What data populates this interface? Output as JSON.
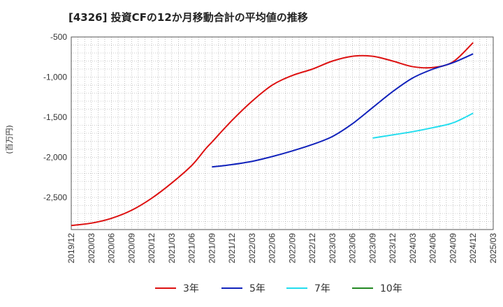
{
  "chart_data": {
    "type": "line",
    "title": "[4326]  投資CFの12か月移動合計の平均値の推移",
    "ylabel": "(百万円)",
    "xlabel": "",
    "ylim": [
      -2900,
      -500
    ],
    "yticks": [
      -500,
      -1000,
      -1500,
      -2000,
      -2500
    ],
    "ytick_labels": [
      "-500",
      "-1,000",
      "-1,500",
      "-2,000",
      "-2,500"
    ],
    "xticks": [
      "2019/12",
      "2020/03",
      "2020/06",
      "2020/09",
      "2020/12",
      "2021/03",
      "2021/06",
      "2021/09",
      "2021/12",
      "2022/03",
      "2022/06",
      "2022/09",
      "2022/12",
      "2023/03",
      "2023/06",
      "2023/09",
      "2023/12",
      "2024/03",
      "2024/06",
      "2024/09",
      "2024/12",
      "2025/03"
    ],
    "grid": true,
    "legend_position": "bottom",
    "series": [
      {
        "name": "3年",
        "color": "#dd1111",
        "points": [
          [
            "2019/12",
            -2850
          ],
          [
            "2020/03",
            -2820
          ],
          [
            "2020/06",
            -2760
          ],
          [
            "2020/09",
            -2660
          ],
          [
            "2020/12",
            -2510
          ],
          [
            "2021/03",
            -2320
          ],
          [
            "2021/06",
            -2100
          ],
          [
            "2021/08",
            -1900
          ],
          [
            "2021/09",
            -1810
          ],
          [
            "2021/12",
            -1540
          ],
          [
            "2022/03",
            -1300
          ],
          [
            "2022/06",
            -1100
          ],
          [
            "2022/09",
            -980
          ],
          [
            "2022/12",
            -900
          ],
          [
            "2023/03",
            -800
          ],
          [
            "2023/06",
            -740
          ],
          [
            "2023/09",
            -740
          ],
          [
            "2023/12",
            -800
          ],
          [
            "2024/03",
            -870
          ],
          [
            "2024/06",
            -880
          ],
          [
            "2024/09",
            -810
          ],
          [
            "2024/12",
            -570
          ]
        ]
      },
      {
        "name": "5年",
        "color": "#1122bb",
        "points": [
          [
            "2021/09",
            -2120
          ],
          [
            "2021/12",
            -2090
          ],
          [
            "2022/03",
            -2050
          ],
          [
            "2022/06",
            -1990
          ],
          [
            "2022/09",
            -1920
          ],
          [
            "2022/12",
            -1840
          ],
          [
            "2023/03",
            -1740
          ],
          [
            "2023/06",
            -1580
          ],
          [
            "2023/09",
            -1380
          ],
          [
            "2023/12",
            -1180
          ],
          [
            "2024/03",
            -1010
          ],
          [
            "2024/06",
            -900
          ],
          [
            "2024/09",
            -820
          ],
          [
            "2024/12",
            -710
          ]
        ]
      },
      {
        "name": "7年",
        "color": "#22ddee",
        "points": [
          [
            "2023/09",
            -1760
          ],
          [
            "2023/12",
            -1720
          ],
          [
            "2024/03",
            -1680
          ],
          [
            "2024/06",
            -1630
          ],
          [
            "2024/09",
            -1570
          ],
          [
            "2024/12",
            -1450
          ]
        ]
      },
      {
        "name": "10年",
        "color": "#228822",
        "points": []
      }
    ]
  }
}
